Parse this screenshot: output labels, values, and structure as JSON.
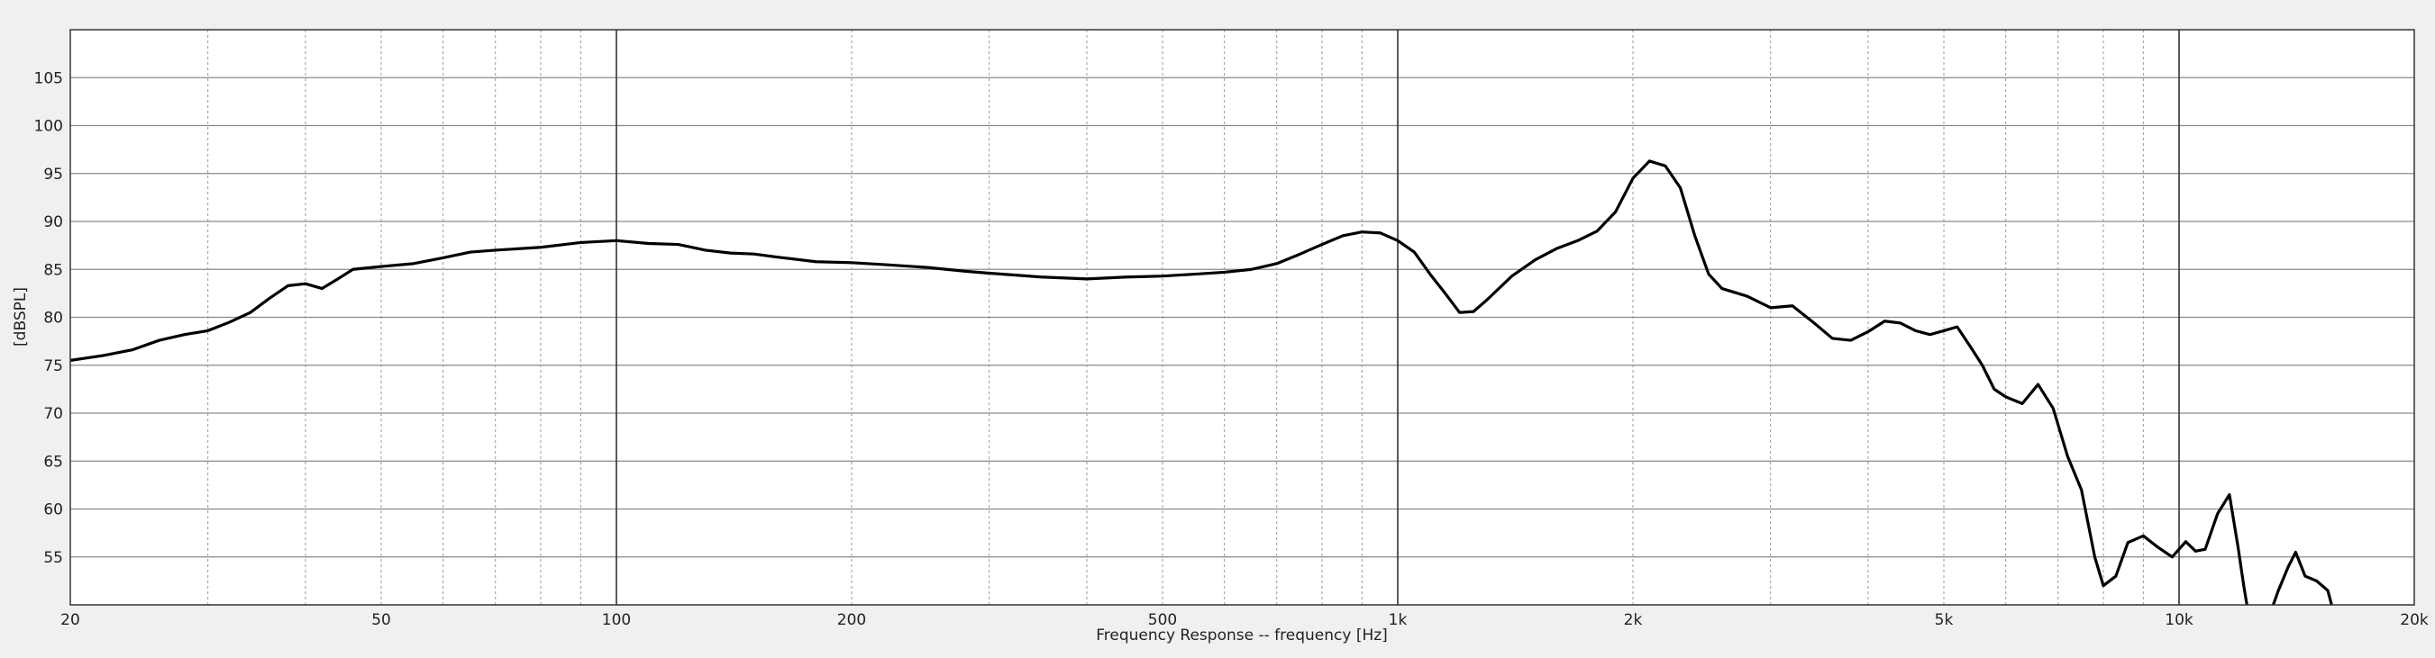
{
  "chart_data": {
    "type": "line",
    "title": "",
    "xlabel": "Frequency Response -- frequency [Hz]",
    "ylabel": "[dBSPL]",
    "xscale": "log",
    "xlim": [
      20,
      20000
    ],
    "ylim": [
      50,
      110
    ],
    "grid": true,
    "x_tick_labels": [
      {
        "v": 20,
        "label": "20"
      },
      {
        "v": 50,
        "label": "50"
      },
      {
        "v": 100,
        "label": "100"
      },
      {
        "v": 200,
        "label": "200"
      },
      {
        "v": 500,
        "label": "500"
      },
      {
        "v": 1000,
        "label": "1k"
      },
      {
        "v": 2000,
        "label": "2k"
      },
      {
        "v": 5000,
        "label": "5k"
      },
      {
        "v": 10000,
        "label": "10k"
      },
      {
        "v": 20000,
        "label": "20k"
      }
    ],
    "x_major_lines": [
      100,
      1000,
      10000
    ],
    "x_minor_lines": [
      30,
      40,
      50,
      60,
      70,
      80,
      90,
      200,
      300,
      400,
      500,
      600,
      700,
      800,
      900,
      2000,
      3000,
      4000,
      5000,
      6000,
      7000,
      8000,
      9000
    ],
    "y_ticks": [
      55,
      60,
      65,
      70,
      75,
      80,
      85,
      90,
      95,
      100,
      105
    ],
    "series": [
      {
        "name": "",
        "color": "#000000",
        "segments": [
          [
            [
              20,
              75.5
            ],
            [
              22,
              76
            ],
            [
              24,
              76.6
            ],
            [
              26,
              77.6
            ],
            [
              28,
              78.2
            ],
            [
              30,
              78.6
            ],
            [
              32,
              79.5
            ],
            [
              34,
              80.5
            ],
            [
              36,
              82
            ],
            [
              38,
              83.3
            ],
            [
              40,
              83.5
            ],
            [
              42,
              83.0
            ],
            [
              44,
              84.0
            ],
            [
              46,
              85.0
            ],
            [
              50,
              85.3
            ],
            [
              55,
              85.6
            ],
            [
              60,
              86.2
            ],
            [
              65,
              86.8
            ],
            [
              70,
              87.0
            ],
            [
              80,
              87.3
            ],
            [
              90,
              87.8
            ],
            [
              100,
              88.0
            ],
            [
              110,
              87.7
            ],
            [
              120,
              87.6
            ],
            [
              130,
              87.0
            ],
            [
              140,
              86.7
            ],
            [
              150,
              86.6
            ],
            [
              160,
              86.3
            ],
            [
              180,
              85.8
            ],
            [
              200,
              85.7
            ],
            [
              220,
              85.5
            ],
            [
              250,
              85.2
            ],
            [
              280,
              84.8
            ],
            [
              300,
              84.6
            ],
            [
              350,
              84.2
            ],
            [
              400,
              84.0
            ],
            [
              450,
              84.2
            ],
            [
              500,
              84.3
            ],
            [
              550,
              84.5
            ],
            [
              600,
              84.7
            ],
            [
              650,
              85.0
            ],
            [
              700,
              85.6
            ],
            [
              750,
              86.6
            ],
            [
              800,
              87.6
            ],
            [
              850,
              88.5
            ],
            [
              900,
              88.9
            ],
            [
              950,
              88.8
            ],
            [
              1000,
              88.0
            ],
            [
              1050,
              86.8
            ],
            [
              1100,
              84.5
            ],
            [
              1150,
              82.5
            ],
            [
              1200,
              80.5
            ],
            [
              1250,
              80.6
            ],
            [
              1300,
              81.8
            ],
            [
              1400,
              84.3
            ],
            [
              1500,
              86.0
            ],
            [
              1600,
              87.2
            ],
            [
              1700,
              88.0
            ],
            [
              1800,
              89.0
            ],
            [
              1900,
              91.0
            ],
            [
              2000,
              94.5
            ],
            [
              2100,
              96.3
            ],
            [
              2200,
              95.8
            ],
            [
              2300,
              93.5
            ],
            [
              2400,
              88.5
            ],
            [
              2500,
              84.5
            ],
            [
              2600,
              83.0
            ],
            [
              2800,
              82.2
            ],
            [
              3000,
              81.0
            ],
            [
              3200,
              81.2
            ],
            [
              3400,
              79.5
            ],
            [
              3600,
              77.8
            ],
            [
              3800,
              77.6
            ],
            [
              4000,
              78.5
            ],
            [
              4200,
              79.6
            ],
            [
              4400,
              79.4
            ],
            [
              4600,
              78.6
            ],
            [
              4800,
              78.2
            ],
            [
              5000,
              78.6
            ],
            [
              5200,
              79.0
            ],
            [
              5400,
              77.0
            ],
            [
              5600,
              75.0
            ],
            [
              5800,
              72.5
            ],
            [
              6000,
              71.7
            ],
            [
              6300,
              71.0
            ],
            [
              6600,
              73.0
            ],
            [
              6900,
              70.5
            ],
            [
              7200,
              65.5
            ],
            [
              7500,
              62.0
            ],
            [
              7800,
              55.0
            ],
            [
              8000,
              52.0
            ],
            [
              8300,
              53.0
            ],
            [
              8600,
              56.5
            ],
            [
              9000,
              57.2
            ],
            [
              9400,
              56.0
            ],
            [
              9800,
              55.0
            ],
            [
              10200,
              56.6
            ],
            [
              10500,
              55.6
            ],
            [
              10800,
              55.8
            ],
            [
              11200,
              59.5
            ],
            [
              11600,
              61.5
            ],
            [
              11900,
              56.0
            ],
            [
              12100,
              52.0
            ],
            [
              12300,
              48.5
            ]
          ],
          [
            [
              13000,
              48.5
            ],
            [
              13400,
              51.5
            ],
            [
              13800,
              54.0
            ],
            [
              14100,
              55.5
            ],
            [
              14500,
              53.0
            ],
            [
              15000,
              52.5
            ],
            [
              15500,
              51.5
            ],
            [
              15800,
              49.0
            ]
          ]
        ]
      }
    ]
  }
}
